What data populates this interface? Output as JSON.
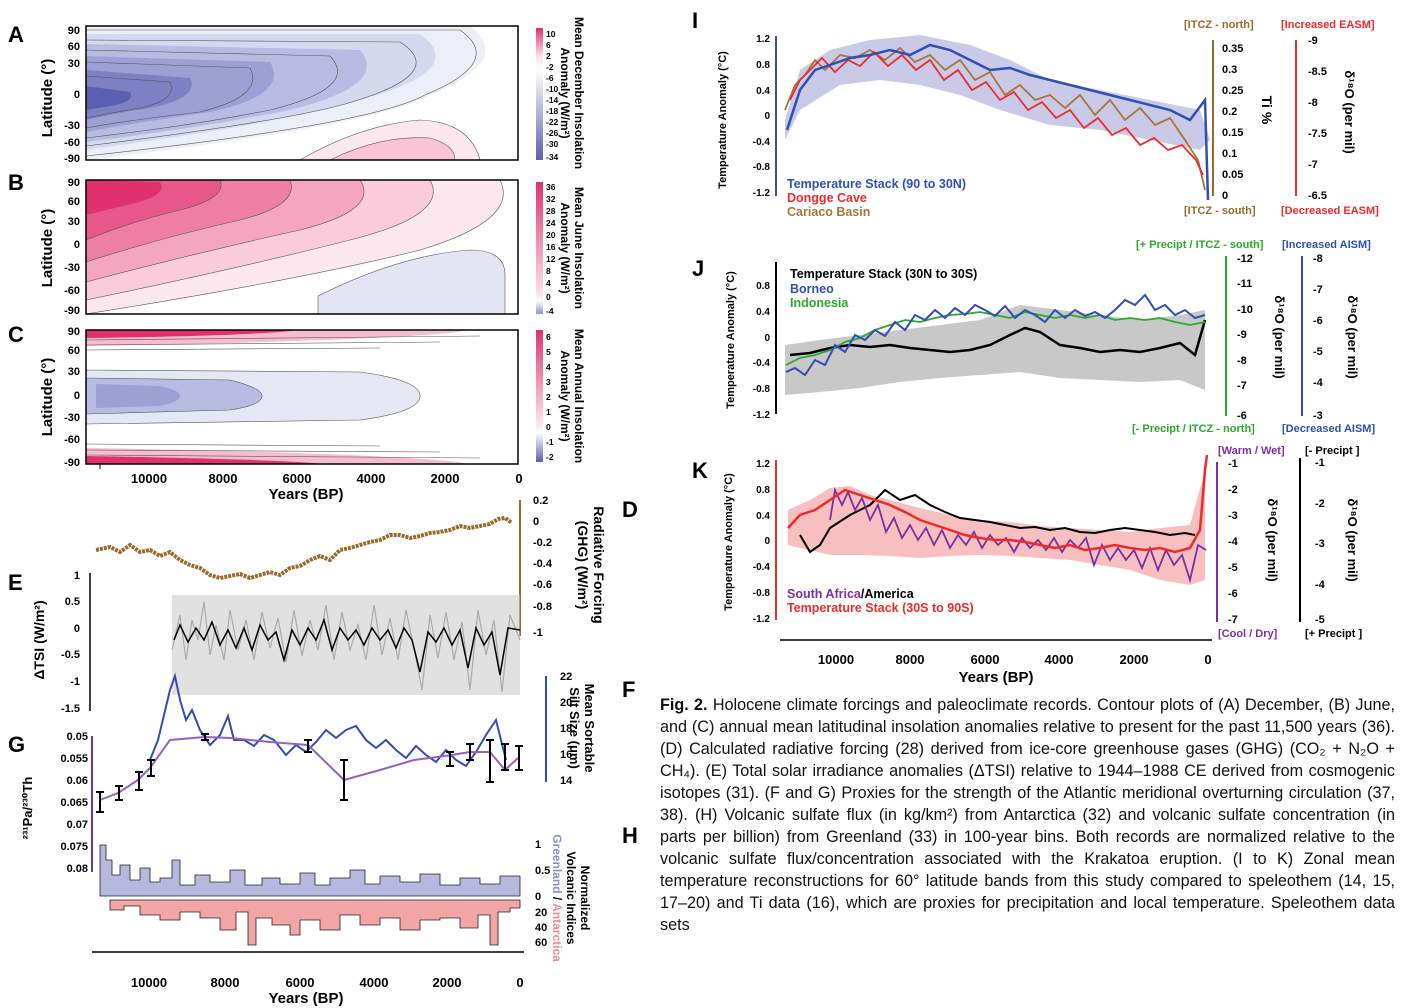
{
  "figure": {
    "panels": {
      "A": {
        "label": "A",
        "title_lines": [
          "Mean December Insolation",
          "Anomaly (W/m²)"
        ],
        "lat_ticks": [
          "90",
          "60",
          "30",
          "0",
          "-30",
          "-60",
          "-90"
        ],
        "ylabel": "Latitude (°)",
        "colorbar": [
          "10",
          "6",
          "2",
          "-2",
          "-6",
          "-10",
          "-14",
          "-18",
          "-22",
          "-26",
          "-30",
          "-34"
        ]
      },
      "B": {
        "label": "B",
        "title_lines": [
          "Mean June Insolation",
          "Anomaly (W/m²)"
        ],
        "lat_ticks": [
          "90",
          "60",
          "30",
          "0",
          "-30",
          "-60",
          "-90"
        ],
        "ylabel": "Latitude (°)",
        "colorbar": [
          "36",
          "32",
          "28",
          "24",
          "20",
          "16",
          "12",
          "8",
          "4",
          "0",
          "-4"
        ]
      },
      "C": {
        "label": "C",
        "title_lines": [
          "Mean Annual Insolation",
          "Anomaly (W/m²)"
        ],
        "lat_ticks": [
          "90",
          "60",
          "30",
          "0",
          "-30",
          "-60",
          "-90"
        ],
        "ylabel": "Latitude (°)",
        "colorbar": [
          "6",
          "5",
          "4",
          "3",
          "2",
          "1",
          "0",
          "-1",
          "-2"
        ]
      },
      "ABC_x": {
        "ticks": [
          "10000",
          "8000",
          "6000",
          "4000",
          "2000",
          "0"
        ],
        "label": "Years (BP)"
      },
      "D": {
        "label": "D",
        "ylabel_lines": [
          "Radiative Forcing",
          "(GHG) (W/m²)"
        ],
        "ticks": [
          "0.2",
          "0",
          "-0.2",
          "-0.4",
          "-0.6",
          "-0.8",
          "-1"
        ]
      },
      "E": {
        "label": "E",
        "ylabel": "ΔTSI (W/m²)",
        "ticks": [
          "1",
          "0.5",
          "0",
          "-0.5",
          "-1",
          "-1.5"
        ]
      },
      "F": {
        "label": "F",
        "ylabel_lines": [
          "Mean Sortable",
          "Silt Size (μm)"
        ],
        "ticks": [
          "22",
          "20",
          "18",
          "16",
          "14"
        ]
      },
      "G": {
        "label": "G",
        "ylabel": "²³¹Pa/²³⁰Th",
        "ticks": [
          "0.05",
          "0.055",
          "0.06",
          "0.065",
          "0.07",
          "0.075",
          "0.08"
        ]
      },
      "H": {
        "label": "H",
        "ylabel_lines": [
          "Normalized",
          "Volcanic Indices"
        ],
        "sub_green": "Greenland",
        "sub_sep": " / ",
        "sub_ant": "Antarctica",
        "ticks_top": [
          "1",
          "0.5",
          "0"
        ],
        "ticks_bot": [
          "20",
          "40",
          "60"
        ]
      },
      "DH_x": {
        "ticks": [
          "10000",
          "8000",
          "6000",
          "4000",
          "2000",
          "0"
        ],
        "label": "Years (BP)"
      },
      "I": {
        "label": "I",
        "ylabel": "Temperature Anomaly (°C)",
        "ticks": [
          "1.2",
          "0.8",
          "0.4",
          "0",
          "-0.4",
          "-0.8",
          "-1.2"
        ],
        "ti_label": "Ti %",
        "ti_ticks": [
          "0.35",
          "0.3",
          "0.25",
          "0.2",
          "0.15",
          "0.1",
          "0.05",
          "0"
        ],
        "itcz_n": "[ITCZ - north]",
        "itcz_s": "[ITCZ - south]",
        "easm_inc": "[Increased EASM]",
        "easm_dec": "[Decreased EASM]",
        "d18o_label": "δ¹⁸O (per mil)",
        "d18o_ticks": [
          "-9",
          "-8.5",
          "-8",
          "-7.5",
          "-7",
          "-6.5"
        ],
        "legend": [
          "Temperature Stack (90 to 30N)",
          "Dongge Cave",
          "Cariaco Basin"
        ]
      },
      "J": {
        "label": "J",
        "ylabel": "Temperature Anomaly (°C)",
        "ticks": [
          "0.8",
          "0.4",
          "0",
          "-0.4",
          "-0.8",
          "-1.2"
        ],
        "green_top": "[+ Precipt / ITCZ - south]",
        "green_bot": "[- Precipt / ITCZ - north]",
        "blue_top": "[Increased AISM]",
        "blue_bot": "[Decreased AISM]",
        "green_ticks": [
          "-12",
          "-11",
          "-10",
          "-9",
          "-8",
          "-7",
          "-6"
        ],
        "blue_ticks": [
          "-8",
          "-7",
          "-6",
          "-5",
          "-4",
          "-3"
        ],
        "d18o_label": "δ¹⁸O (per mil)",
        "legend": [
          "Temperature Stack (30N to 30S)",
          "Borneo",
          "Indonesia"
        ]
      },
      "K": {
        "label": "K",
        "ylabel": "Temperature Anomaly (°C)",
        "ticks": [
          "1.2",
          "0.8",
          "0.4",
          "0",
          "-0.4",
          "-0.8",
          "-1.2"
        ],
        "purple_top": "[Warm / Wet]",
        "purple_bot": "[Cool / Dry]",
        "black_top": "[- Precipt ]",
        "black_bot": "[+ Precipt ]",
        "purple_ticks": [
          "-1",
          "-2",
          "-3",
          "-4",
          "-5",
          "-6",
          "-7"
        ],
        "black_ticks": [
          "-1",
          "-2",
          "-3",
          "-4",
          "-5"
        ],
        "d18o_label": "δ¹⁸O (per mil)",
        "legend_sa": "South Africa",
        "legend_slash": "/",
        "legend_am": "America",
        "legend_ts": "Temperature Stack (30S to 90S)"
      },
      "IK_x": {
        "ticks": [
          "10000",
          "8000",
          "6000",
          "4000",
          "2000",
          "0"
        ],
        "label": "Years (BP)"
      }
    },
    "colors": {
      "pink": "#e0306e",
      "blue": "#5a5fb0",
      "brown": "#9a6a2a",
      "black": "#000000",
      "stack_blue": "#2f4fb5",
      "red": "#ee2a2a",
      "tan": "#a8753a",
      "green": "#2aaa2a",
      "purple": "#7b2fa5",
      "lavender": "#b7b8e0",
      "salmon": "#f3a4a4",
      "grey": "#b5b5b5"
    }
  },
  "caption": {
    "head": "Fig. 2.",
    "text": "Holocene climate forcings and paleoclimate records. Contour plots of (A) December, (B) June, and (C) annual mean latitudinal insolation anomalies relative to present for the past 11,500 years (36). (D) Calculated radiative forcing (28) derived from ice-core greenhouse gases (GHG) (CO₂ + N₂O + CH₄). (E) Total solar irradiance anomalies (ΔTSI) relative to 1944–1988 CE derived from cosmogenic isotopes (31). (F and G) Proxies for the strength of the Atlantic meridional overturning circulation (37, 38). (H) Volcanic sulfate flux (in kg/km²) from Antarctica (32) and volcanic sulfate concentration (in parts per billion) from Greenland (33) in 100-year bins. Both records are normalized relative to the volcanic sulfate flux/concentration associated with the Krakatoa eruption. (I to K) Zonal mean temperature reconstructions for 60° latitude bands from this study compared to speleothem (14, 15, 17–20) and Ti data (16), which are proxies for precipitation and local temperature. Speleothem data sets"
  }
}
